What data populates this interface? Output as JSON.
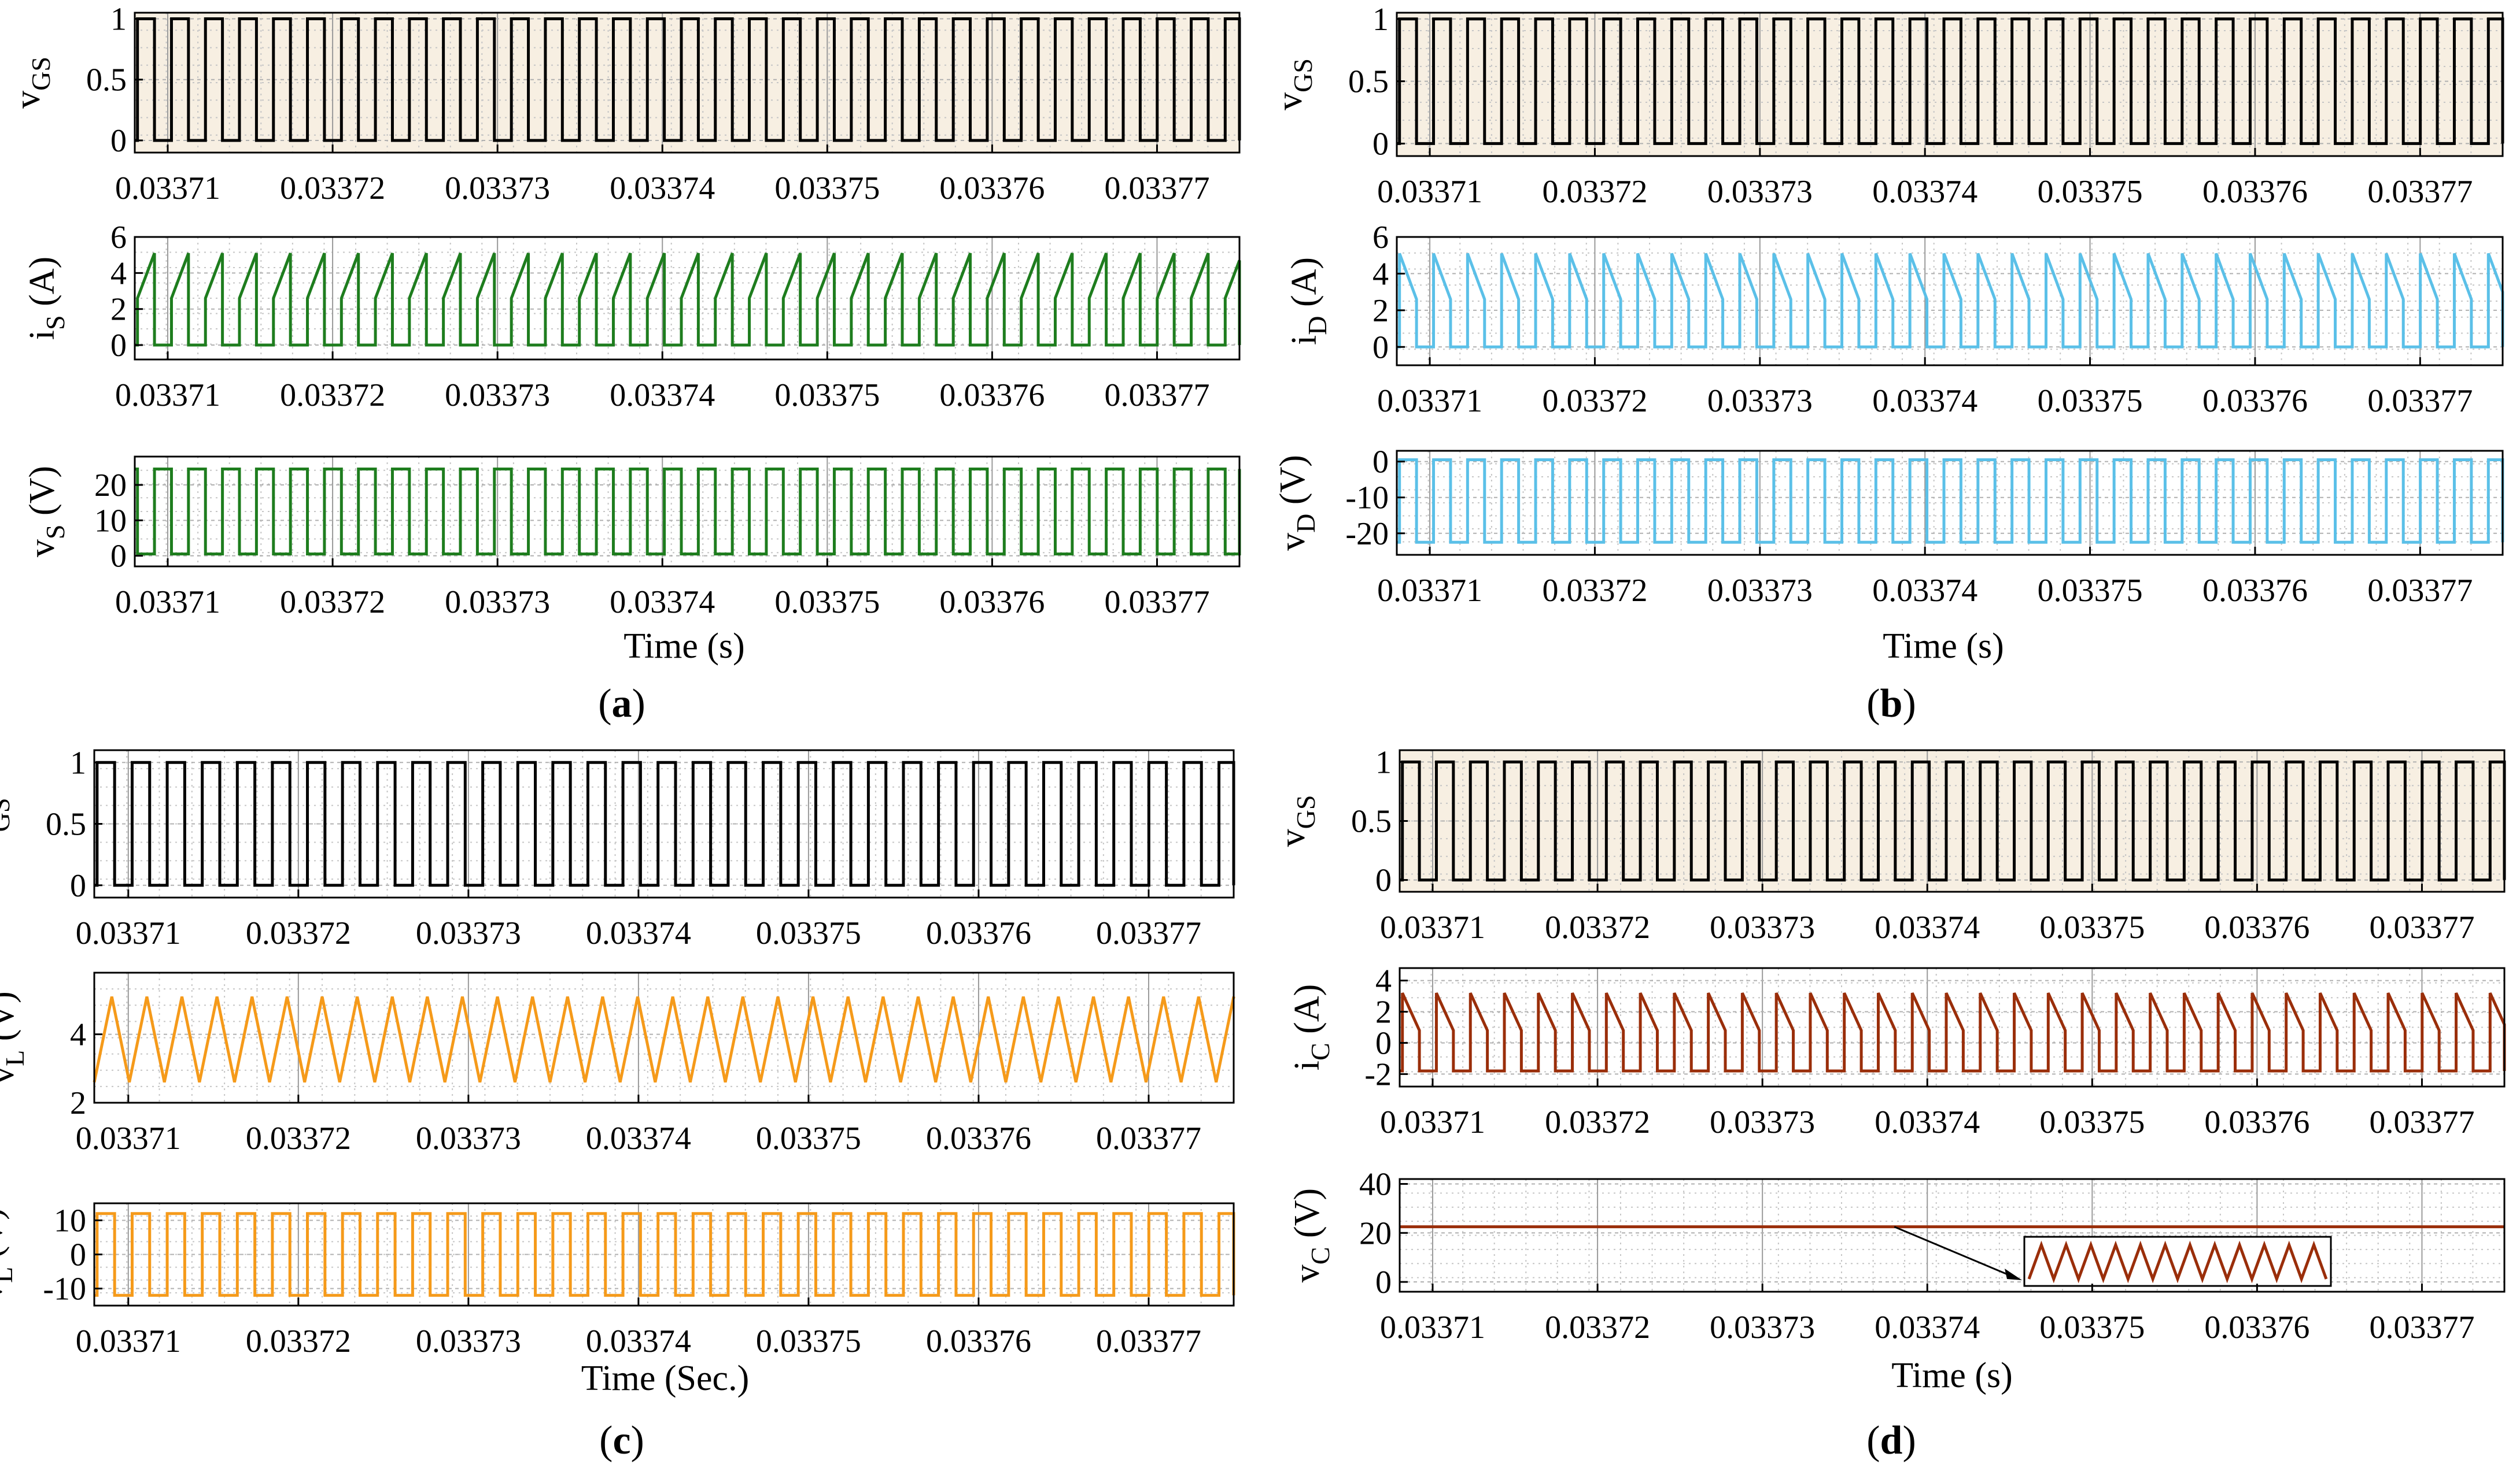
{
  "colors": {
    "black": "#000000",
    "green": "#1e7d1e",
    "cyan": "#5bc0e8",
    "orange": "#f59a1a",
    "brown": "#9a2e0a",
    "paper_bg": "#f7efe2",
    "grid": "#b8b8b8"
  },
  "panels": [
    {
      "id": "a",
      "label_open": "(",
      "label_letter": "a",
      "label_close": ")",
      "xlabel": "Time (s)"
    },
    {
      "id": "b",
      "label_open": "(",
      "label_letter": "b",
      "label_close": ")",
      "xlabel": "Time (s)"
    },
    {
      "id": "c",
      "label_open": "(",
      "label_letter": "c",
      "label_close": ")",
      "xlabel": "Time (Sec.)"
    },
    {
      "id": "d",
      "label_open": "(",
      "label_letter": "d",
      "label_close": ")",
      "xlabel": "Time (s)"
    }
  ],
  "chart_data": [
    {
      "panel": "a",
      "type": "line",
      "waveform": "square",
      "ylabel_main": "v",
      "ylabel_sub": "GS",
      "ylabel_unit": "",
      "xlim": [
        0.033708,
        0.033775
      ],
      "ylim": [
        -0.1,
        1.05
      ],
      "yticks": [
        "0",
        "0.5",
        "1"
      ],
      "ytick_values": [
        0,
        0.5,
        1
      ],
      "xticks": [
        "0.03371",
        "0.03372",
        "0.03373",
        "0.03374",
        "0.03375",
        "0.03376",
        "0.03377"
      ],
      "low": 0,
      "high": 1,
      "cycles": 32.5,
      "duty": 0.5,
      "color": "#000000",
      "background": "#f7efe2"
    },
    {
      "panel": "a",
      "type": "line",
      "waveform": "current_rise",
      "ylabel_main": "i",
      "ylabel_sub": "S",
      "ylabel_unit": " (A)",
      "xlim": [
        0.033708,
        0.033775
      ],
      "ylim": [
        -0.8,
        6
      ],
      "yticks": [
        "0",
        "2",
        "4",
        "6"
      ],
      "ytick_values": [
        0,
        2,
        4,
        6
      ],
      "xticks": [
        "0.03371",
        "0.03372",
        "0.03373",
        "0.03374",
        "0.03375",
        "0.03376",
        "0.03377"
      ],
      "low": 0,
      "min_on": 2.6,
      "max_on": 5.1,
      "cycles": 32.5,
      "duty": 0.5,
      "color": "#1e7d1e",
      "background": "#ffffff"
    },
    {
      "panel": "a",
      "type": "line",
      "waveform": "square",
      "ylabel_main": "v",
      "ylabel_sub": "S",
      "ylabel_unit": " (V)",
      "xlim": [
        0.033708,
        0.033775
      ],
      "ylim": [
        -3,
        28
      ],
      "yticks": [
        "0",
        "10",
        "20"
      ],
      "ytick_values": [
        0,
        10,
        20
      ],
      "xticks": [
        "0.03371",
        "0.03372",
        "0.03373",
        "0.03374",
        "0.03375",
        "0.03376",
        "0.03377"
      ],
      "low": 0.5,
      "high": 24.5,
      "cycles": 32.5,
      "duty": 0.5,
      "inverted": true,
      "color": "#1e7d1e",
      "background": "#ffffff"
    },
    {
      "panel": "b",
      "type": "line",
      "waveform": "square",
      "ylabel_main": "v",
      "ylabel_sub": "GS",
      "ylabel_unit": "",
      "xlim": [
        0.033708,
        0.033775
      ],
      "ylim": [
        -0.1,
        1.05
      ],
      "yticks": [
        "0",
        "0.5",
        "1"
      ],
      "ytick_values": [
        0,
        0.5,
        1
      ],
      "xticks": [
        "0.03371",
        "0.03372",
        "0.03373",
        "0.03374",
        "0.03375",
        "0.03376",
        "0.03377"
      ],
      "low": 0,
      "high": 1,
      "cycles": 32.5,
      "duty": 0.5,
      "color": "#000000",
      "background": "#f7efe2"
    },
    {
      "panel": "b",
      "type": "line",
      "waveform": "current_fall",
      "ylabel_main": "i",
      "ylabel_sub": "D",
      "ylabel_unit": " (A)",
      "xlim": [
        0.033708,
        0.033775
      ],
      "ylim": [
        -1,
        6
      ],
      "yticks": [
        "0",
        "2",
        "4",
        "6"
      ],
      "ytick_values": [
        0,
        2,
        4,
        6
      ],
      "xticks": [
        "0.03371",
        "0.03372",
        "0.03373",
        "0.03374",
        "0.03375",
        "0.03376",
        "0.03377"
      ],
      "low": 0,
      "min_on": 2.6,
      "max_on": 5.1,
      "cycles": 32.5,
      "duty": 0.5,
      "color": "#5bc0e8",
      "background": "#ffffff"
    },
    {
      "panel": "b",
      "type": "line",
      "waveform": "square",
      "ylabel_main": "v",
      "ylabel_sub": "D",
      "ylabel_unit": " (V)",
      "xlim": [
        0.033708,
        0.033775
      ],
      "ylim": [
        -26,
        3
      ],
      "yticks": [
        "-20",
        "-10",
        "0"
      ],
      "ytick_values": [
        -20,
        -10,
        0
      ],
      "xticks": [
        "0.03371",
        "0.03372",
        "0.03373",
        "0.03374",
        "0.03375",
        "0.03376",
        "0.03377"
      ],
      "low": -22.5,
      "high": 0.5,
      "cycles": 32.5,
      "duty": 0.5,
      "color": "#5bc0e8",
      "background": "#ffffff"
    },
    {
      "panel": "c",
      "type": "line",
      "waveform": "square",
      "ylabel_main": "v",
      "ylabel_sub": "GS",
      "ylabel_unit": "",
      "xlim": [
        0.033708,
        0.033775
      ],
      "ylim": [
        -0.1,
        1.1
      ],
      "yticks": [
        "0",
        "0.5",
        "1"
      ],
      "ytick_values": [
        0,
        0.5,
        1
      ],
      "xticks": [
        "0.03371",
        "0.03372",
        "0.03373",
        "0.03374",
        "0.03375",
        "0.03376",
        "0.03377"
      ],
      "low": 0,
      "high": 1,
      "cycles": 32.5,
      "duty": 0.5,
      "color": "#000000",
      "background": "#ffffff"
    },
    {
      "panel": "c",
      "type": "line",
      "waveform": "triangle",
      "ylabel_main": "v",
      "ylabel_sub": "L",
      "ylabel_unit": " (V)",
      "xlim": [
        0.033708,
        0.033775
      ],
      "ylim": [
        2,
        5.8
      ],
      "yticks": [
        "2",
        "4"
      ],
      "ytick_values": [
        2,
        4
      ],
      "xticks": [
        "0.03371",
        "0.03372",
        "0.03373",
        "0.03374",
        "0.03375",
        "0.03376",
        "0.03377"
      ],
      "low": 2.6,
      "high": 5.1,
      "cycles": 32.5,
      "color": "#f59a1a",
      "background": "#ffffff"
    },
    {
      "panel": "c",
      "type": "line",
      "waveform": "square",
      "ylabel_main": "v",
      "ylabel_sub": "L",
      "ylabel_unit": " (V)",
      "xlim": [
        0.033708,
        0.033775
      ],
      "ylim": [
        -15,
        15
      ],
      "yticks": [
        "-10",
        "0",
        "10"
      ],
      "ytick_values": [
        -10,
        0,
        10
      ],
      "xticks": [
        "0.03371",
        "0.03372",
        "0.03373",
        "0.03374",
        "0.03375",
        "0.03376",
        "0.03377"
      ],
      "low": -12,
      "high": 12,
      "cycles": 32.5,
      "duty": 0.5,
      "color": "#f59a1a",
      "background": "#ffffff"
    },
    {
      "panel": "d",
      "type": "line",
      "waveform": "square",
      "ylabel_main": "v",
      "ylabel_sub": "GS",
      "ylabel_unit": "",
      "xlim": [
        0.033708,
        0.033775
      ],
      "ylim": [
        -0.1,
        1.1
      ],
      "yticks": [
        "0",
        "0.5",
        "1"
      ],
      "ytick_values": [
        0,
        0.5,
        1
      ],
      "xticks": [
        "0.03371",
        "0.03372",
        "0.03373",
        "0.03374",
        "0.03375",
        "0.03376",
        "0.03377"
      ],
      "low": 0,
      "high": 1,
      "cycles": 32.5,
      "duty": 0.5,
      "color": "#000000",
      "background": "#f7efe2"
    },
    {
      "panel": "d",
      "type": "line",
      "waveform": "current_fall",
      "ylabel_main": "i",
      "ylabel_sub": "C",
      "ylabel_unit": " (A)",
      "xlim": [
        0.033708,
        0.033775
      ],
      "ylim": [
        -2.8,
        4.8
      ],
      "yticks": [
        "-2",
        "0",
        "2",
        "4"
      ],
      "ytick_values": [
        -2,
        0,
        2,
        4
      ],
      "xticks": [
        "0.03371",
        "0.03372",
        "0.03373",
        "0.03374",
        "0.03375",
        "0.03376",
        "0.03377"
      ],
      "low": -1.8,
      "min_on": 0.8,
      "max_on": 3.2,
      "cycles": 32.5,
      "duty": 0.5,
      "color": "#9a2e0a",
      "background": "#ffffff"
    },
    {
      "panel": "d",
      "type": "line",
      "waveform": "flat",
      "ylabel_main": "v",
      "ylabel_sub": "C",
      "ylabel_unit": " (V)",
      "xlim": [
        0.033708,
        0.033775
      ],
      "ylim": [
        -4,
        42
      ],
      "yticks": [
        "0",
        "20",
        "40"
      ],
      "ytick_values": [
        0,
        20,
        40
      ],
      "xticks": [
        "0.03371",
        "0.03372",
        "0.03373",
        "0.03374",
        "0.03375",
        "0.03376",
        "0.03377"
      ],
      "value": 22.5,
      "color": "#9a2e0a",
      "background": "#ffffff",
      "inset": {
        "type": "zoom",
        "waveform": "triangle",
        "teeth": 12,
        "arrow_from_x": 0.033738,
        "arrow_to_x": 0.0337465
      }
    }
  ]
}
